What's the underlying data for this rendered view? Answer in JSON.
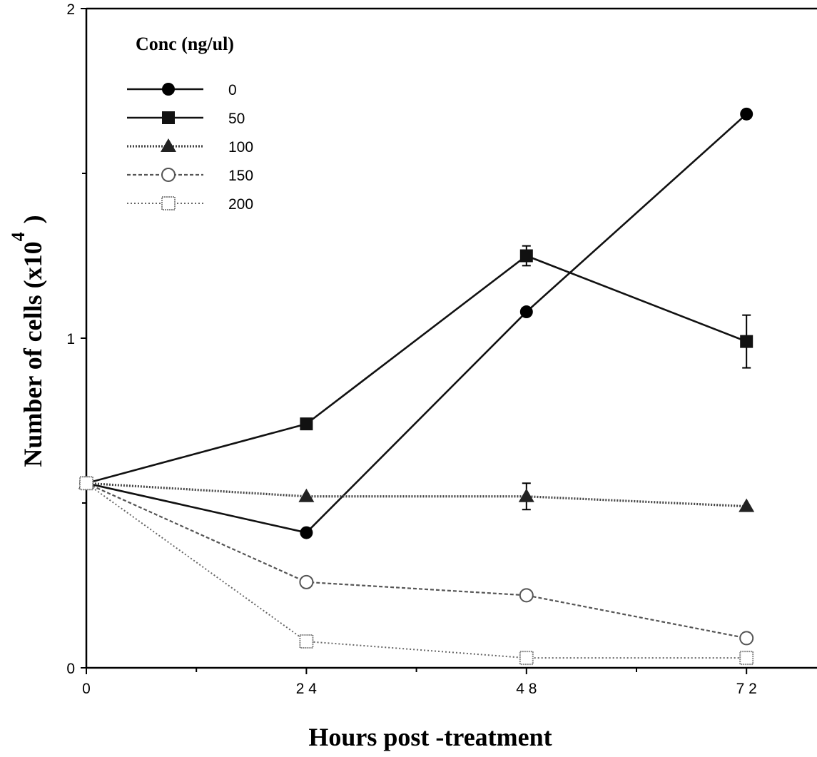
{
  "chart_data": {
    "type": "line",
    "xlabel": "Hours post -treatment",
    "ylabel": "Number of cells (x10",
    "ylabel_superscript": "4",
    "ylabel_close": ")",
    "xlim": [
      0,
      80
    ],
    "ylim": [
      0,
      2
    ],
    "x_ticks": [
      0,
      24,
      48,
      72
    ],
    "x_minor_ticks": [
      12,
      36,
      60
    ],
    "y_ticks": [
      0,
      1,
      2
    ],
    "y_minor_ticks": [
      0.5,
      1.5
    ],
    "grid": false,
    "legend": {
      "title": "Conc  (ng/ul)",
      "placement": "top-left"
    },
    "x": [
      0,
      24,
      48,
      72
    ],
    "series": [
      {
        "name": "0",
        "marker": "circle-filled",
        "line": "solid",
        "values": [
          0.56,
          0.41,
          1.08,
          1.68
        ],
        "errors": [
          0,
          0,
          0,
          0
        ]
      },
      {
        "name": "50",
        "marker": "square-filled",
        "line": "solid",
        "values": [
          0.56,
          0.74,
          1.25,
          0.99
        ],
        "errors": [
          0,
          0,
          0.03,
          0.08
        ]
      },
      {
        "name": "100",
        "marker": "triangle-filled",
        "line": "dotted",
        "values": [
          0.56,
          0.52,
          0.52,
          0.49
        ],
        "errors": [
          0,
          0,
          0.04,
          0
        ]
      },
      {
        "name": "150",
        "marker": "circle-open",
        "line": "dashed",
        "values": [
          0.56,
          0.26,
          0.22,
          0.09
        ],
        "errors": [
          0,
          0,
          0,
          0
        ]
      },
      {
        "name": "200",
        "marker": "square-open",
        "line": "fine-dots",
        "values": [
          0.56,
          0.08,
          0.03,
          0.03
        ],
        "errors": [
          0,
          0,
          0,
          0
        ]
      }
    ]
  }
}
